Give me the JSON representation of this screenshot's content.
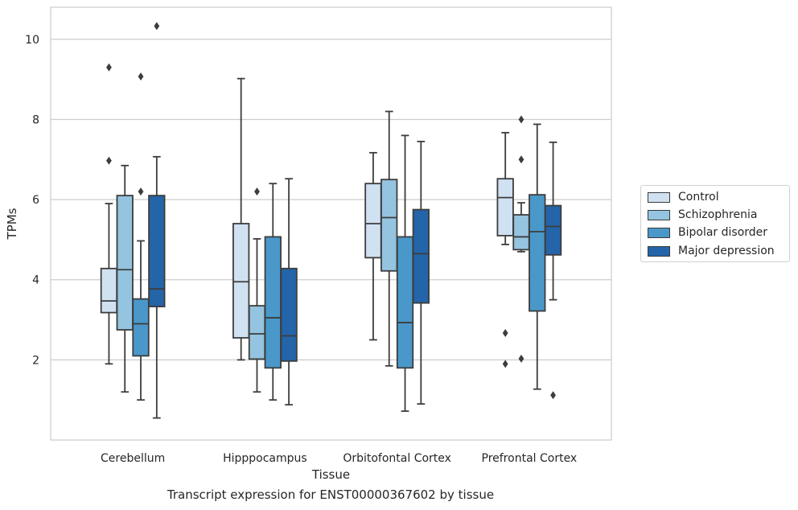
{
  "chart_data": {
    "type": "box",
    "title": "",
    "caption": "Transcript expression for ENST00000367602 by tissue",
    "xlabel": "Tissue",
    "ylabel": "TPMs",
    "ylim": [
      0.0,
      10.8
    ],
    "yticks": [
      2,
      4,
      6,
      8,
      10
    ],
    "grid": "horizontal",
    "legend_position": "right",
    "categories": [
      "Cerebellum",
      "Hipppocampus",
      "Orbitofontal Cortex",
      "Prefrontal Cortex"
    ],
    "series": [
      {
        "name": "Control",
        "color": "#d0e1f2",
        "boxes": [
          {
            "whislo": 1.9,
            "q1": 3.18,
            "med": 3.47,
            "q3": 4.28,
            "whishi": 5.9,
            "fliers": [
              6.97,
              9.3
            ]
          },
          {
            "whislo": 2.0,
            "q1": 2.55,
            "med": 3.95,
            "q3": 5.4,
            "whishi": 9.02,
            "fliers": []
          },
          {
            "whislo": 2.5,
            "q1": 4.55,
            "med": 5.4,
            "q3": 6.4,
            "whishi": 7.17,
            "fliers": []
          },
          {
            "whislo": 4.88,
            "q1": 5.1,
            "med": 6.05,
            "q3": 6.52,
            "whishi": 7.67,
            "fliers": [
              2.67,
              1.9
            ]
          }
        ]
      },
      {
        "name": "Schizophrenia",
        "color": "#94c4df",
        "boxes": [
          {
            "whislo": 1.2,
            "q1": 2.75,
            "med": 4.25,
            "q3": 6.1,
            "whishi": 6.85,
            "fliers": []
          },
          {
            "whislo": 1.2,
            "q1": 2.02,
            "med": 2.65,
            "q3": 3.35,
            "whishi": 5.02,
            "fliers": [
              6.2
            ]
          },
          {
            "whislo": 1.85,
            "q1": 4.22,
            "med": 5.55,
            "q3": 6.5,
            "whishi": 8.2,
            "fliers": []
          },
          {
            "whislo": 4.7,
            "q1": 4.75,
            "med": 5.07,
            "q3": 5.62,
            "whishi": 5.92,
            "fliers": [
              7.0,
              8.0,
              2.03
            ]
          }
        ]
      },
      {
        "name": "Bipolar disorder",
        "color": "#4a98c9",
        "boxes": [
          {
            "whislo": 1.0,
            "q1": 2.1,
            "med": 2.9,
            "q3": 3.52,
            "whishi": 4.97,
            "fliers": [
              6.2,
              9.07
            ]
          },
          {
            "whislo": 1.0,
            "q1": 1.8,
            "med": 3.05,
            "q3": 5.07,
            "whishi": 6.4,
            "fliers": []
          },
          {
            "whislo": 0.72,
            "q1": 1.8,
            "med": 2.93,
            "q3": 5.07,
            "whishi": 7.6,
            "fliers": []
          },
          {
            "whislo": 1.27,
            "q1": 3.22,
            "med": 5.2,
            "q3": 6.12,
            "whishi": 7.88,
            "fliers": []
          }
        ]
      },
      {
        "name": "Major depression",
        "color": "#2464a8",
        "boxes": [
          {
            "whislo": 0.55,
            "q1": 3.33,
            "med": 3.77,
            "q3": 6.1,
            "whishi": 7.07,
            "fliers": [
              10.33
            ]
          },
          {
            "whislo": 0.88,
            "q1": 1.97,
            "med": 2.6,
            "q3": 4.28,
            "whishi": 6.52,
            "fliers": []
          },
          {
            "whislo": 0.9,
            "q1": 3.42,
            "med": 4.65,
            "q3": 5.75,
            "whishi": 7.45,
            "fliers": []
          },
          {
            "whislo": 3.5,
            "q1": 4.62,
            "med": 5.33,
            "q3": 5.85,
            "whishi": 7.43,
            "fliers": [
              1.12
            ]
          }
        ]
      }
    ]
  }
}
